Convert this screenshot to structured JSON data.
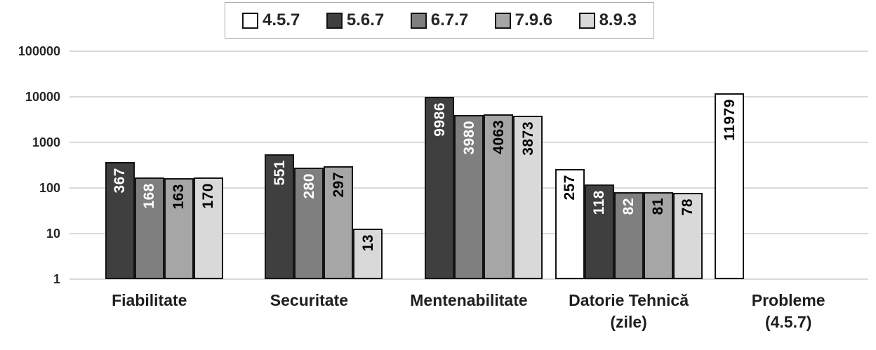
{
  "chart_data": {
    "type": "bar",
    "title": "",
    "xlabel": "",
    "ylabel": "",
    "y_scale": "log10",
    "ylim": [
      1,
      100000
    ],
    "y_ticks": [
      "1",
      "10",
      "100",
      "1000",
      "10000",
      "100000"
    ],
    "grid": true,
    "gridline_color": "#d9d9d9",
    "bar_border_color": "#141414",
    "legend_position": "top-center",
    "data_labels": "rotated-90-inside-end",
    "categories": [
      "Fiabilitate",
      "Securitate",
      "Mentenabilitate",
      "Datorie Tehnică (zile)",
      "Probleme (4.5.7)"
    ],
    "category_label_lines": [
      [
        "Fiabilitate"
      ],
      [
        "Securitate"
      ],
      [
        "Mentenabilitate"
      ],
      [
        "Datorie Tehnică",
        "(zile)"
      ],
      [
        "Probleme",
        "(4.5.7)"
      ]
    ],
    "series": [
      {
        "name": "4.5.7",
        "color": "#ffffff",
        "label_color": "#000000",
        "values": [
          null,
          null,
          null,
          257,
          11979
        ]
      },
      {
        "name": "5.6.7",
        "color": "#3f3f3f",
        "label_color": "#ffffff",
        "values": [
          367,
          551,
          9986,
          118,
          null
        ]
      },
      {
        "name": "6.7.7",
        "color": "#7f7f7f",
        "label_color": "#ffffff",
        "values": [
          168,
          280,
          3980,
          82,
          null
        ]
      },
      {
        "name": "7.9.6",
        "color": "#a6a6a6",
        "label_color": "#000000",
        "values": [
          163,
          297,
          4063,
          81,
          null
        ]
      },
      {
        "name": "8.9.3",
        "color": "#d9d9d9",
        "label_color": "#000000",
        "values": [
          170,
          13,
          3873,
          78,
          null
        ]
      }
    ]
  }
}
